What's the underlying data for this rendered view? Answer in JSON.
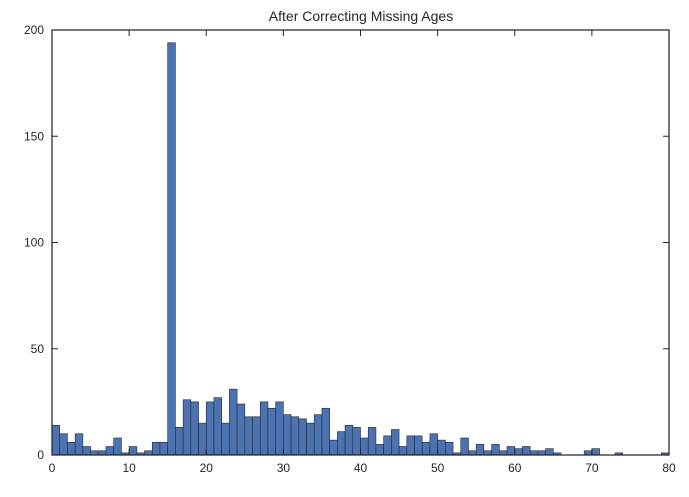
{
  "chart_data": {
    "type": "bar",
    "title": "After Correcting Missing Ages",
    "xlabel": "",
    "ylabel": "",
    "xlim": [
      0,
      80
    ],
    "ylim": [
      0,
      200
    ],
    "xticks": [
      0,
      10,
      20,
      30,
      40,
      50,
      60,
      70,
      80
    ],
    "yticks": [
      0,
      50,
      100,
      150,
      200
    ],
    "grid": false,
    "bin_width": 1,
    "bins_start": 0,
    "values": [
      14,
      10,
      6,
      10,
      4,
      2,
      2,
      4,
      8,
      1,
      4,
      1,
      2,
      6,
      6,
      194,
      13,
      26,
      25,
      15,
      25,
      27,
      15,
      31,
      24,
      18,
      18,
      25,
      22,
      25,
      19,
      18,
      17,
      15,
      19,
      22,
      7,
      11,
      14,
      13,
      8,
      13,
      5,
      9,
      12,
      4,
      9,
      9,
      6,
      10,
      7,
      6,
      1,
      8,
      2,
      5,
      2,
      5,
      2,
      4,
      3,
      4,
      2,
      2,
      3,
      1,
      0,
      0,
      0,
      2,
      3,
      0,
      0,
      1,
      0,
      0,
      0,
      0,
      0,
      1
    ],
    "bar_color": "#4c72b0",
    "edge_color": "#1f2a44"
  }
}
